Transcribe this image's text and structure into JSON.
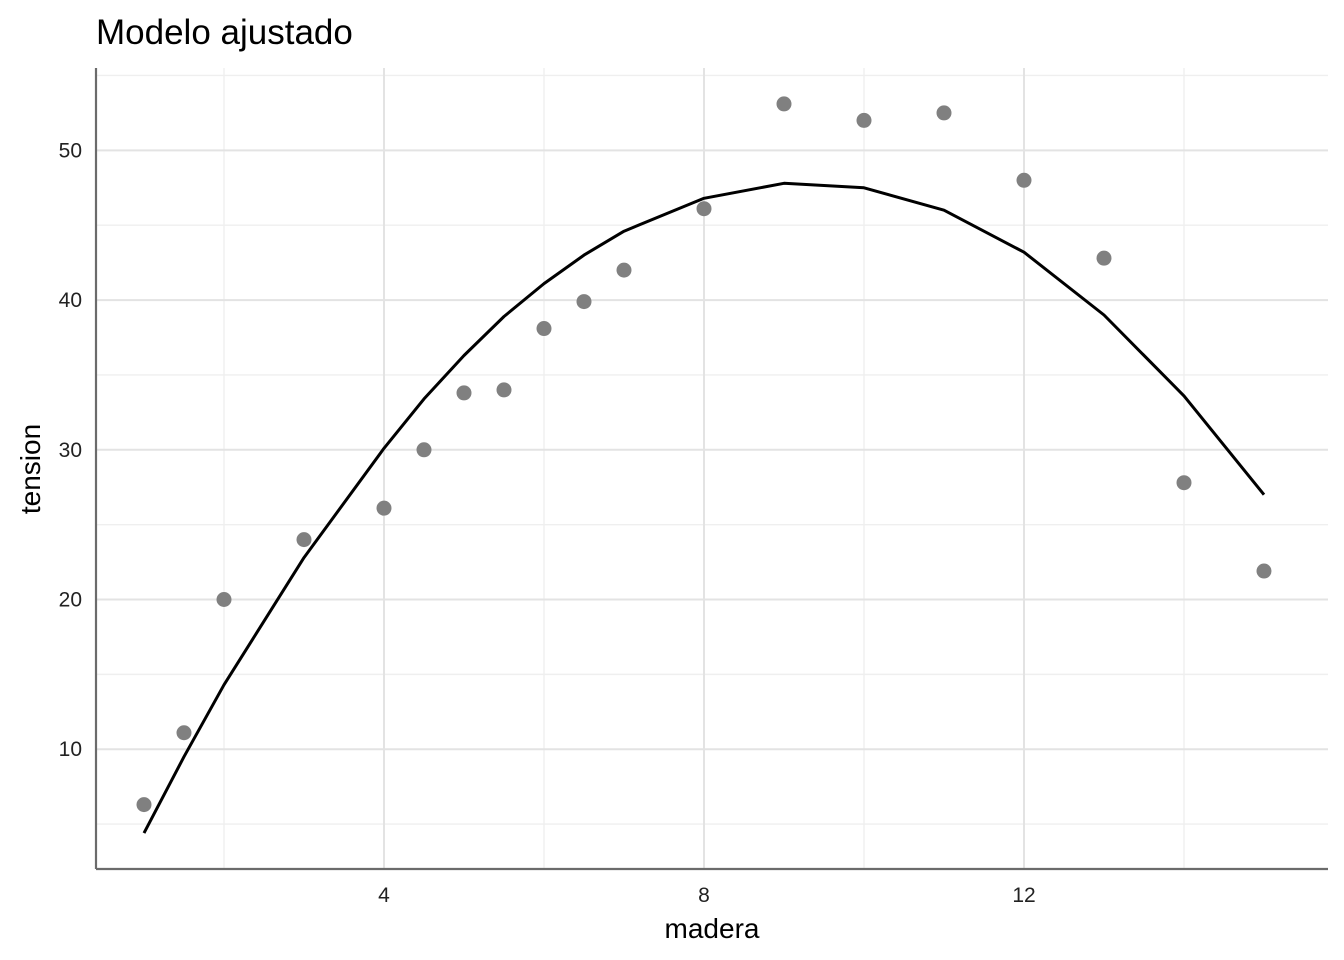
{
  "chart_data": {
    "type": "scatter",
    "title": "Modelo ajustado",
    "xlabel": "madera",
    "ylabel": "tension",
    "xlim": [
      0.4,
      15.8
    ],
    "ylim": [
      2.0,
      55.5
    ],
    "x_ticks": [
      4,
      8,
      12
    ],
    "x_minor_ticks": [
      2,
      6,
      10,
      14
    ],
    "y_ticks": [
      10,
      20,
      30,
      40,
      50
    ],
    "y_minor_ticks": [
      5,
      15,
      25,
      35,
      45,
      55
    ],
    "grid": true,
    "legend": "none",
    "colors": {
      "points": "#808080",
      "line": "#000000",
      "axis": "#6b6b6b",
      "grid": "#e3e3e3"
    },
    "points": {
      "x": [
        1,
        1.5,
        2,
        3,
        4,
        4.5,
        5,
        5.5,
        6,
        6.5,
        7,
        8,
        9,
        10,
        11,
        12,
        13,
        14,
        15
      ],
      "y": [
        6.3,
        11.1,
        20.0,
        24.0,
        26.1,
        30.0,
        33.8,
        34.0,
        38.1,
        39.9,
        42.0,
        46.1,
        53.1,
        52.0,
        52.5,
        48.0,
        42.8,
        27.8,
        21.9
      ]
    },
    "fitted": {
      "x": [
        1,
        1.5,
        2,
        3,
        4,
        4.5,
        5,
        5.5,
        6,
        6.5,
        7,
        8,
        9,
        10,
        11,
        12,
        13,
        14,
        15
      ],
      "y": [
        4.4,
        9.5,
        14.3,
        22.8,
        30.1,
        33.4,
        36.3,
        38.9,
        41.1,
        43.0,
        44.6,
        46.8,
        47.8,
        47.5,
        46.0,
        43.2,
        39.0,
        33.6,
        27.0
      ]
    }
  }
}
